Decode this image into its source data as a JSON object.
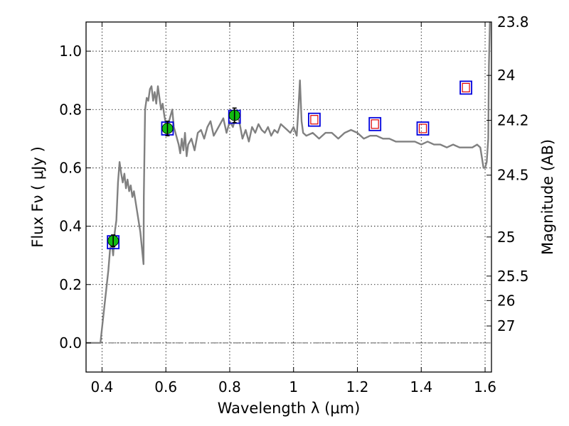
{
  "chart_data": {
    "type": "line",
    "xlabel": "Wavelength  λ (μm)",
    "ylabel": "Flux  Fν  ( μJy )",
    "ylabel_right": "Magnitude (AB)",
    "xlim": [
      0.35,
      1.62
    ],
    "ylim": [
      -0.1,
      1.1
    ],
    "grid": true,
    "x_ticks": [
      {
        "value": 0.4,
        "label": "0.4"
      },
      {
        "value": 0.6,
        "label": "0.6"
      },
      {
        "value": 0.8,
        "label": "0.8"
      },
      {
        "value": 1.0,
        "label": "1"
      },
      {
        "value": 1.2,
        "label": "1.2"
      },
      {
        "value": 1.4,
        "label": "1.4"
      },
      {
        "value": 1.6,
        "label": "1.6"
      }
    ],
    "y_ticks": [
      {
        "value": 0.0,
        "label": "0.0"
      },
      {
        "value": 0.2,
        "label": "0.2"
      },
      {
        "value": 0.4,
        "label": "0.4"
      },
      {
        "value": 0.6,
        "label": "0.6"
      },
      {
        "value": 0.8,
        "label": "0.8"
      },
      {
        "value": 1.0,
        "label": "1.0"
      }
    ],
    "right_ticks": [
      {
        "flux": 1.1,
        "label": "23.8"
      },
      {
        "flux": 0.917,
        "label": "24"
      },
      {
        "flux": 0.763,
        "label": "24.2"
      },
      {
        "flux": 0.575,
        "label": "24.5"
      },
      {
        "flux": 0.363,
        "label": "25"
      },
      {
        "flux": 0.229,
        "label": "25.5"
      },
      {
        "flux": 0.145,
        "label": "26"
      },
      {
        "flux": 0.058,
        "label": "27"
      }
    ],
    "series": [
      {
        "kind": "sed_model",
        "color": "#808080",
        "x": [
          0.35,
          0.395,
          0.4,
          0.41,
          0.42,
          0.425,
          0.43,
          0.435,
          0.44,
          0.445,
          0.45,
          0.455,
          0.46,
          0.465,
          0.47,
          0.475,
          0.48,
          0.485,
          0.49,
          0.495,
          0.5,
          0.51,
          0.52,
          0.53,
          0.531,
          0.535,
          0.54,
          0.545,
          0.55,
          0.555,
          0.56,
          0.565,
          0.57,
          0.575,
          0.58,
          0.585,
          0.59,
          0.595,
          0.6,
          0.605,
          0.61,
          0.615,
          0.62,
          0.625,
          0.63,
          0.64,
          0.645,
          0.65,
          0.655,
          0.66,
          0.665,
          0.67,
          0.68,
          0.69,
          0.7,
          0.71,
          0.72,
          0.73,
          0.74,
          0.75,
          0.76,
          0.77,
          0.78,
          0.79,
          0.8,
          0.81,
          0.82,
          0.83,
          0.84,
          0.85,
          0.86,
          0.87,
          0.88,
          0.89,
          0.9,
          0.91,
          0.92,
          0.93,
          0.94,
          0.95,
          0.96,
          0.97,
          0.98,
          0.99,
          1.0,
          1.01,
          1.015,
          1.02,
          1.025,
          1.03,
          1.04,
          1.06,
          1.08,
          1.1,
          1.12,
          1.14,
          1.16,
          1.18,
          1.2,
          1.22,
          1.24,
          1.26,
          1.28,
          1.3,
          1.32,
          1.34,
          1.36,
          1.38,
          1.4,
          1.42,
          1.44,
          1.46,
          1.48,
          1.5,
          1.52,
          1.54,
          1.56,
          1.575,
          1.585,
          1.595,
          1.6,
          1.605,
          1.61,
          1.612,
          1.615
        ],
        "y": [
          0.0,
          0.0,
          0.05,
          0.15,
          0.25,
          0.32,
          0.35,
          0.3,
          0.38,
          0.42,
          0.55,
          0.62,
          0.58,
          0.55,
          0.58,
          0.53,
          0.56,
          0.52,
          0.54,
          0.5,
          0.52,
          0.45,
          0.38,
          0.27,
          0.5,
          0.8,
          0.84,
          0.83,
          0.87,
          0.88,
          0.83,
          0.86,
          0.82,
          0.88,
          0.84,
          0.8,
          0.82,
          0.78,
          0.75,
          0.72,
          0.76,
          0.78,
          0.8,
          0.74,
          0.72,
          0.68,
          0.65,
          0.7,
          0.66,
          0.72,
          0.64,
          0.68,
          0.7,
          0.66,
          0.72,
          0.73,
          0.7,
          0.74,
          0.76,
          0.71,
          0.73,
          0.75,
          0.77,
          0.72,
          0.76,
          0.74,
          0.78,
          0.76,
          0.7,
          0.73,
          0.69,
          0.74,
          0.72,
          0.75,
          0.73,
          0.72,
          0.74,
          0.71,
          0.73,
          0.72,
          0.75,
          0.74,
          0.73,
          0.72,
          0.74,
          0.71,
          0.8,
          0.9,
          0.76,
          0.72,
          0.71,
          0.72,
          0.7,
          0.72,
          0.72,
          0.7,
          0.72,
          0.73,
          0.72,
          0.7,
          0.71,
          0.71,
          0.7,
          0.7,
          0.69,
          0.69,
          0.69,
          0.69,
          0.68,
          0.69,
          0.68,
          0.68,
          0.67,
          0.68,
          0.67,
          0.67,
          0.67,
          0.68,
          0.67,
          0.6,
          0.6,
          0.62,
          0.7,
          0.95,
          1.1
        ]
      },
      {
        "kind": "photometry_observed",
        "name": "",
        "x": [
          0.435,
          0.605,
          0.815
        ],
        "flux": [
          0.35,
          0.735,
          0.78
        ],
        "err": [
          0.02,
          0.025,
          0.025
        ],
        "model_flux": [
          0.345,
          0.735,
          0.775
        ]
      },
      {
        "kind": "photometry_upper",
        "name": "",
        "x": [
          1.065,
          1.255,
          1.405,
          1.54
        ],
        "flux": [
          0.765,
          0.75,
          0.735,
          0.875
        ]
      }
    ],
    "colors": {
      "model_line": "#808080",
      "observed_fill": "#11bb11",
      "model_box": "#0000dd",
      "upper_box": "#dd0000",
      "grid": "#000000"
    }
  }
}
